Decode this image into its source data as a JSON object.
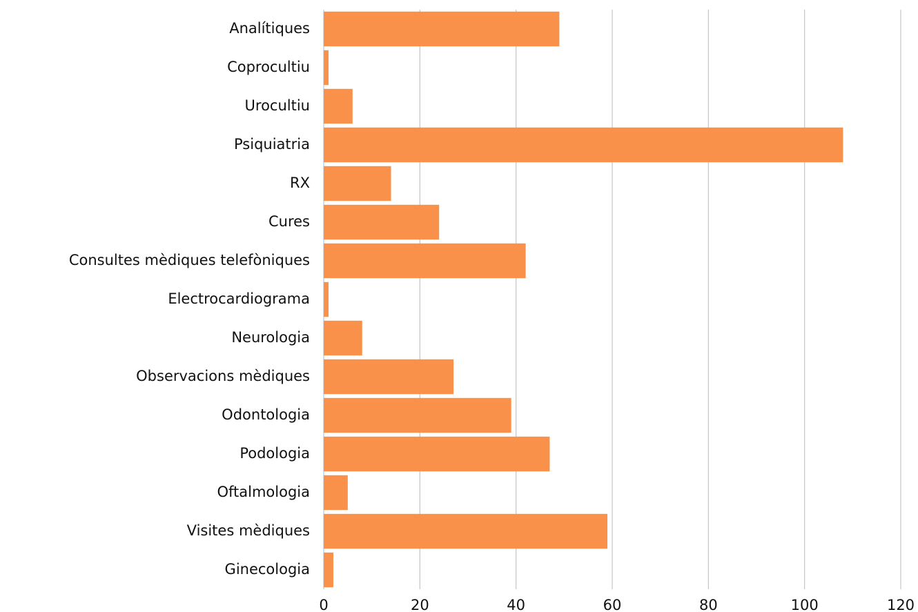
{
  "chart_data": {
    "type": "bar",
    "orientation": "horizontal",
    "categories": [
      "Analítiques",
      "Coprocultiu",
      "Urocultiu",
      "Psiquiatria",
      "RX",
      "Cures",
      "Consultes mèdiques telefòniques",
      "Electrocardiograma",
      "Neurologia",
      "Observacions mèdiques",
      "Odontologia",
      "Podologia",
      "Oftalmologia",
      "Visites mèdiques",
      "Ginecologia"
    ],
    "values": [
      49,
      1,
      6,
      108,
      14,
      24,
      42,
      1,
      8,
      27,
      39,
      47,
      5,
      59,
      2
    ],
    "color": "#f9914a",
    "xlim": [
      0,
      120
    ],
    "xticks": [
      0,
      20,
      40,
      60,
      80,
      100,
      120
    ],
    "grid": true
  }
}
